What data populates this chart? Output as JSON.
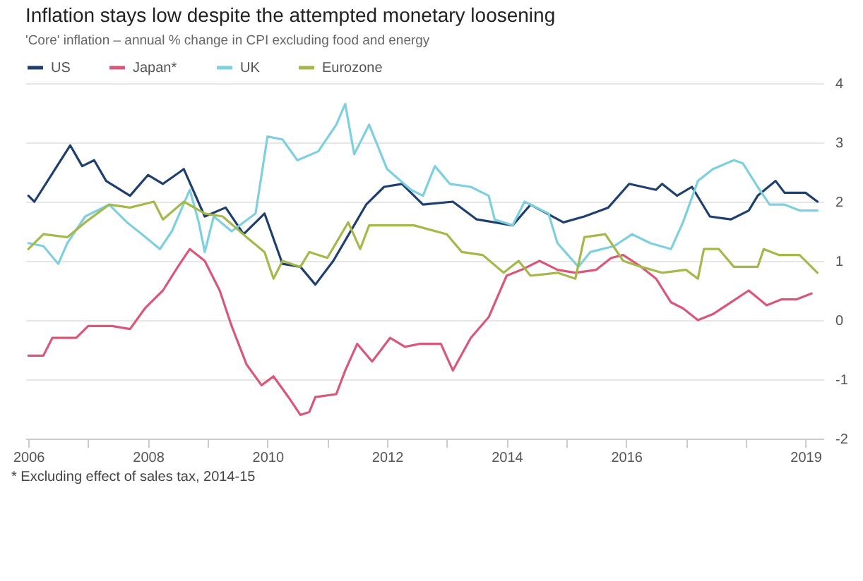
{
  "chart_data": {
    "type": "line",
    "title": "Inflation stays low despite the attempted monetary loosening",
    "subtitle": "'Core' inflation – annual % change in CPI excluding food and energy",
    "xlim": [
      2005.95,
      2019.3
    ],
    "ylim": [
      -2,
      4
    ],
    "yticks": [
      -2,
      -1,
      0,
      1,
      2,
      3,
      4
    ],
    "xticks": [
      2006,
      {
        "value": 2007,
        "label": null
      },
      2008,
      {
        "value": 2009,
        "label": null
      },
      2010,
      {
        "value": 2011,
        "label": null
      },
      2012,
      {
        "value": 2013,
        "label": null
      },
      2014,
      {
        "value": 2015,
        "label": null
      },
      2016,
      {
        "value": 2017,
        "label": null
      },
      {
        "value": 2018,
        "label": null
      },
      2019
    ],
    "grid": "y",
    "legend": "top left",
    "marker": "none",
    "line_style": "solid",
    "annotations": [
      "* Excluding effect of sales tax, 2014-15"
    ],
    "series": [
      {
        "name": "US",
        "color": "#1f3f6e",
        "x": [
          2006,
          2006.1,
          2006.7,
          2006.9,
          2007.1,
          2007.3,
          2007.7,
          2008,
          2008.25,
          2008.6,
          2008.95,
          2009.3,
          2009.6,
          2009.95,
          2010.25,
          2010.55,
          2010.8,
          2011.1,
          2011.65,
          2011.95,
          2012.25,
          2012.6,
          2013.1,
          2013.5,
          2014.1,
          2014.4,
          2014.95,
          2015.3,
          2015.7,
          2016.05,
          2016.5,
          2016.6,
          2016.85,
          2017.1,
          2017.4,
          2017.75,
          2018.05,
          2018.2,
          2018.5,
          2018.65,
          2019,
          2019.2
        ],
        "values": [
          2.1,
          2.0,
          2.95,
          2.6,
          2.7,
          2.35,
          2.1,
          2.45,
          2.3,
          2.55,
          1.75,
          1.9,
          1.45,
          1.8,
          0.95,
          0.9,
          0.6,
          1.0,
          1.95,
          2.25,
          2.3,
          1.95,
          2.0,
          1.7,
          1.6,
          1.95,
          1.65,
          1.75,
          1.9,
          2.3,
          2.2,
          2.3,
          2.1,
          2.25,
          1.75,
          1.7,
          1.85,
          2.1,
          2.35,
          2.15,
          2.15,
          2.0
        ]
      },
      {
        "name": "Japan*",
        "color": "#d9577a",
        "x": [
          2006,
          2006.25,
          2006.4,
          2006.8,
          2007,
          2007.4,
          2007.7,
          2007.95,
          2008.25,
          2008.5,
          2008.7,
          2008.95,
          2009.2,
          2009.4,
          2009.65,
          2009.9,
          2010.1,
          2010.35,
          2010.55,
          2010.7,
          2010.8,
          2011.15,
          2011.3,
          2011.5,
          2011.75,
          2012.05,
          2012.3,
          2012.55,
          2012.9,
          2013.1,
          2013.4,
          2013.7,
          2014,
          2014.25,
          2014.55,
          2014.85,
          2015.15,
          2015.5,
          2015.75,
          2015.95,
          2016.25,
          2016.5,
          2016.75,
          2016.95,
          2017.2,
          2017.45,
          2017.75,
          2018.05,
          2018.35,
          2018.6,
          2018.85,
          2019.1
        ],
        "values": [
          -0.6,
          -0.6,
          -0.3,
          -0.3,
          -0.1,
          -0.1,
          -0.15,
          0.2,
          0.5,
          0.9,
          1.2,
          1.0,
          0.5,
          -0.1,
          -0.75,
          -1.1,
          -0.95,
          -1.3,
          -1.6,
          -1.55,
          -1.3,
          -1.25,
          -0.85,
          -0.4,
          -0.7,
          -0.3,
          -0.45,
          -0.4,
          -0.4,
          -0.85,
          -0.3,
          0.05,
          0.75,
          0.85,
          1.0,
          0.85,
          0.8,
          0.85,
          1.05,
          1.1,
          0.9,
          0.7,
          0.3,
          0.2,
          0.0,
          0.1,
          0.3,
          0.5,
          0.25,
          0.35,
          0.35,
          0.45
        ]
      },
      {
        "name": "UK",
        "color": "#7ecfe0",
        "x": [
          2006,
          2006.25,
          2006.5,
          2006.65,
          2006.95,
          2007.35,
          2007.65,
          2007.9,
          2008.2,
          2008.4,
          2008.7,
          2008.85,
          2008.95,
          2009.1,
          2009.4,
          2009.8,
          2010,
          2010.25,
          2010.5,
          2010.85,
          2011.15,
          2011.3,
          2011.45,
          2011.7,
          2012,
          2012.4,
          2012.6,
          2012.8,
          2013.05,
          2013.4,
          2013.7,
          2013.8,
          2014.1,
          2014.3,
          2014.7,
          2014.85,
          2015.2,
          2015.4,
          2015.8,
          2016.1,
          2016.4,
          2016.75,
          2016.95,
          2017.2,
          2017.45,
          2017.8,
          2017.95,
          2018.2,
          2018.4,
          2018.65,
          2018.9,
          2019.2
        ],
        "values": [
          1.3,
          1.25,
          0.95,
          1.3,
          1.75,
          1.95,
          1.65,
          1.45,
          1.2,
          1.5,
          2.2,
          1.65,
          1.15,
          1.75,
          1.5,
          1.8,
          3.1,
          3.05,
          2.7,
          2.85,
          3.3,
          3.65,
          2.8,
          3.3,
          2.55,
          2.2,
          2.1,
          2.6,
          2.3,
          2.25,
          2.1,
          1.7,
          1.6,
          2.0,
          1.8,
          1.3,
          0.9,
          1.15,
          1.25,
          1.45,
          1.3,
          1.2,
          1.65,
          2.35,
          2.55,
          2.7,
          2.65,
          2.25,
          1.95,
          1.95,
          1.85,
          1.85
        ]
      },
      {
        "name": "Eurozone",
        "color": "#a3b94a",
        "x": [
          2006,
          2006.25,
          2006.65,
          2006.95,
          2007.35,
          2007.7,
          2008.1,
          2008.25,
          2008.6,
          2008.95,
          2009.25,
          2009.65,
          2009.95,
          2010.1,
          2010.25,
          2010.55,
          2010.7,
          2011,
          2011.35,
          2011.55,
          2011.7,
          2012.05,
          2012.45,
          2013,
          2013.25,
          2013.6,
          2013.95,
          2014.2,
          2014.4,
          2014.85,
          2015.15,
          2015.3,
          2015.65,
          2015.95,
          2016.25,
          2016.6,
          2017,
          2017.2,
          2017.3,
          2017.55,
          2017.8,
          2018.2,
          2018.3,
          2018.55,
          2018.9,
          2019.2
        ],
        "values": [
          1.2,
          1.45,
          1.4,
          1.65,
          1.95,
          1.9,
          2.0,
          1.7,
          2.0,
          1.8,
          1.75,
          1.4,
          1.15,
          0.7,
          1.0,
          0.9,
          1.15,
          1.05,
          1.65,
          1.2,
          1.6,
          1.6,
          1.6,
          1.45,
          1.15,
          1.1,
          0.8,
          1.0,
          0.75,
          0.8,
          0.7,
          1.4,
          1.45,
          1.0,
          0.9,
          0.8,
          0.85,
          0.7,
          1.2,
          1.2,
          0.9,
          0.9,
          1.2,
          1.1,
          1.1,
          0.8
        ]
      }
    ]
  }
}
